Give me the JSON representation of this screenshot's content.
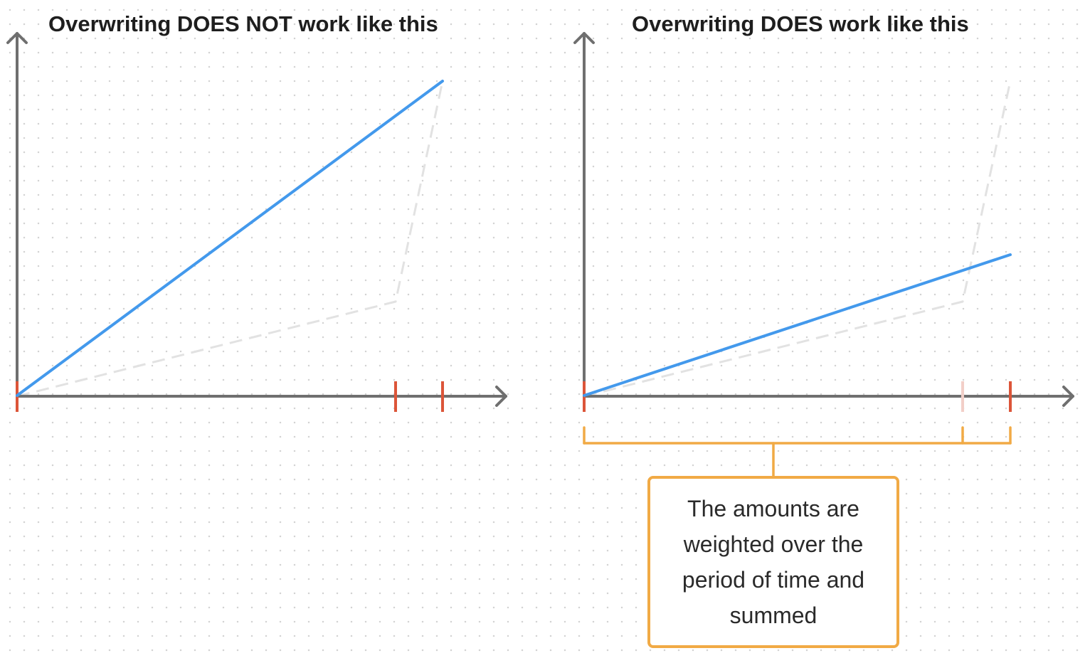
{
  "panels": {
    "left": {
      "title": "Overwriting DOES NOT work like this"
    },
    "right": {
      "title": "Overwriting DOES work like this"
    }
  },
  "note": {
    "text": "The amounts are weighted over the period of time and summed"
  },
  "colors": {
    "axis": "#6f6f6f",
    "result_line": "#4399ec",
    "reference_dashed": "#e2e2e2",
    "tick": "#dc5539",
    "tick_faded": "#f2cfc8",
    "bracket": "#f1aa45",
    "grid_dot": "#d3d3d3"
  }
}
